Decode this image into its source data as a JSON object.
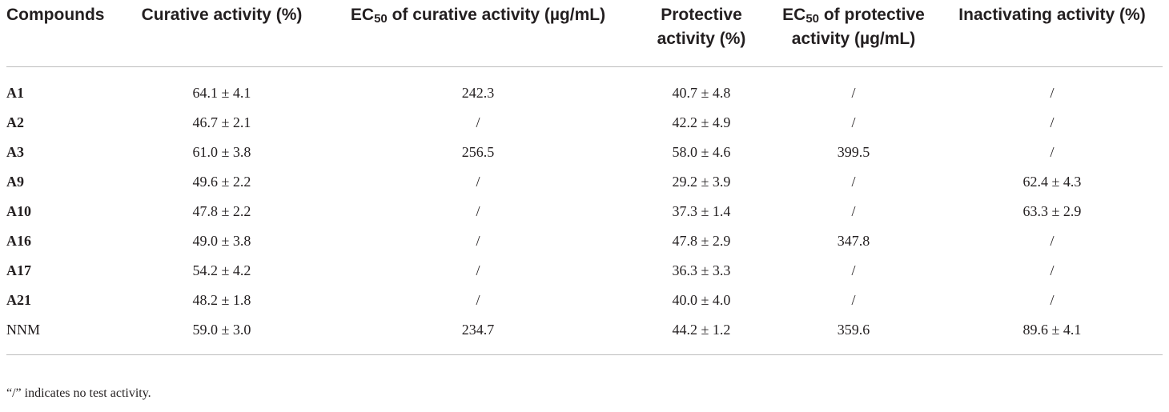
{
  "table": {
    "headers": [
      {
        "pre": "Compounds",
        "sub": "",
        "post": ""
      },
      {
        "pre": "Curative activity (%)",
        "sub": "",
        "post": ""
      },
      {
        "pre": "EC",
        "sub": "50",
        "post": " of curative activity (µg/mL)"
      },
      {
        "pre": "Protective activity (%)",
        "sub": "",
        "post": ""
      },
      {
        "pre": "EC",
        "sub": "50",
        "post": " of protective activity (µg/mL)"
      },
      {
        "pre": "Inactivating activity (%)",
        "sub": "",
        "post": ""
      }
    ],
    "rows": [
      {
        "compound": "A1",
        "curative": "64.1 ± 4.1",
        "ec50_curative": "242.3",
        "protective": "40.7 ± 4.8",
        "ec50_protective": "/",
        "inactivating": "/"
      },
      {
        "compound": "A2",
        "curative": "46.7 ± 2.1",
        "ec50_curative": "/",
        "protective": "42.2 ± 4.9",
        "ec50_protective": "/",
        "inactivating": "/"
      },
      {
        "compound": "A3",
        "curative": "61.0 ± 3.8",
        "ec50_curative": "256.5",
        "protective": "58.0 ± 4.6",
        "ec50_protective": "399.5",
        "inactivating": "/"
      },
      {
        "compound": "A9",
        "curative": "49.6 ± 2.2",
        "ec50_curative": "/",
        "protective": "29.2 ± 3.9",
        "ec50_protective": "/",
        "inactivating": "62.4 ± 4.3"
      },
      {
        "compound": "A10",
        "curative": "47.8 ± 2.2",
        "ec50_curative": "/",
        "protective": "37.3 ± 1.4",
        "ec50_protective": "/",
        "inactivating": "63.3 ± 2.9"
      },
      {
        "compound": "A16",
        "curative": "49.0 ± 3.8",
        "ec50_curative": "/",
        "protective": "47.8 ± 2.9",
        "ec50_protective": "347.8",
        "inactivating": "/"
      },
      {
        "compound": "A17",
        "curative": "54.2 ± 4.2",
        "ec50_curative": "/",
        "protective": "36.3 ± 3.3",
        "ec50_protective": "/",
        "inactivating": "/"
      },
      {
        "compound": "A21",
        "curative": "48.2 ± 1.8",
        "ec50_curative": "/",
        "protective": "40.0 ± 4.0",
        "ec50_protective": "/",
        "inactivating": "/"
      },
      {
        "compound": "NNM",
        "curative": "59.0 ± 3.0",
        "ec50_curative": "234.7",
        "protective": "44.2 ± 1.2",
        "ec50_protective": "359.6",
        "inactivating": "89.6 ± 4.1"
      }
    ]
  },
  "footnote": "“/” indicates no test activity."
}
